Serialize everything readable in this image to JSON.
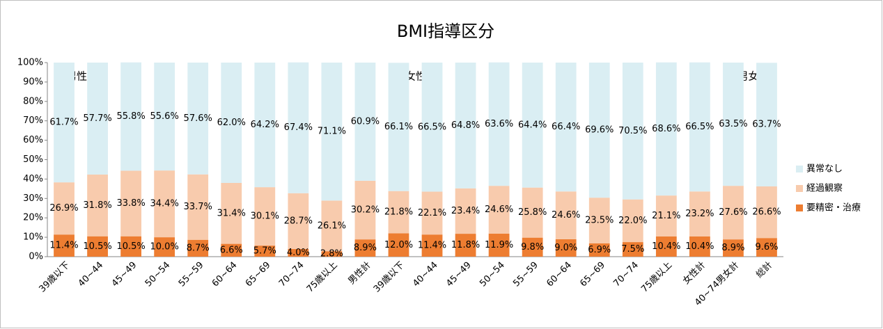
{
  "chart_data": {
    "type": "stacked_bar",
    "title": "BMI指導区分",
    "categories": [
      "39歳以下",
      "40~44",
      "45~49",
      "50~54",
      "55~59",
      "60~64",
      "65~69",
      "70~74",
      "75歳以上",
      "男性計",
      "39歳以下",
      "40~44",
      "45~49",
      "50~54",
      "55~59",
      "60~64",
      "65~69",
      "70~74",
      "75歳以上",
      "女性計",
      "40~74男女計",
      "総計"
    ],
    "series": [
      {
        "name": "要精密・治療",
        "color": "#ed7d31",
        "values": [
          11.4,
          10.5,
          10.5,
          10.0,
          8.7,
          6.6,
          5.7,
          4.0,
          2.8,
          8.9,
          12.0,
          11.4,
          11.8,
          11.9,
          9.8,
          9.0,
          6.9,
          7.5,
          10.4,
          10.4,
          8.9,
          9.6
        ],
        "value_labels": [
          "11.4%",
          "10.5%",
          "10.5%",
          "10.0%",
          "8.7%",
          "6.6%",
          "5.7%",
          "4.0%",
          "2.8%",
          "8.9%",
          "12.0%",
          "11.4%",
          "11.8%",
          "11.9%",
          "9.8%",
          "9.0%",
          "6.9%",
          "7.5%",
          "10.4%",
          "10.4%",
          "8.9%",
          "9.6%"
        ]
      },
      {
        "name": "経過観察",
        "color": "#f8cbad",
        "values": [
          26.9,
          31.8,
          33.8,
          34.4,
          33.7,
          31.4,
          30.1,
          28.7,
          26.1,
          30.2,
          21.8,
          22.1,
          23.4,
          24.6,
          25.8,
          24.6,
          23.5,
          22.0,
          21.1,
          23.2,
          27.6,
          26.6
        ],
        "value_labels": [
          "26.9%",
          "31.8%",
          "33.8%",
          "34.4%",
          "33.7%",
          "31.4%",
          "30.1%",
          "28.7%",
          "26.1%",
          "30.2%",
          "21.8%",
          "22.1%",
          "23.4%",
          "24.6%",
          "25.8%",
          "24.6%",
          "23.5%",
          "22.0%",
          "21.1%",
          "23.2%",
          "27.6%",
          "26.6%"
        ]
      },
      {
        "name": "異常なし",
        "color": "#daeef3",
        "values": [
          61.7,
          57.7,
          55.8,
          55.6,
          57.6,
          62.0,
          64.2,
          67.4,
          71.1,
          60.9,
          66.1,
          66.5,
          64.8,
          63.6,
          64.4,
          66.4,
          69.6,
          70.5,
          68.6,
          66.5,
          63.5,
          63.7
        ],
        "value_labels": [
          "61.7%",
          "57.7%",
          "55.8%",
          "55.6%",
          "57.6%",
          "62.0%",
          "64.2%",
          "67.4%",
          "71.1%",
          "60.9%",
          "66.1%",
          "66.5%",
          "64.8%",
          "63.6%",
          "64.4%",
          "66.4%",
          "69.6%",
          "70.5%",
          "68.6%",
          "66.5%",
          "63.5%",
          "63.7%"
        ]
      }
    ],
    "ylim": [
      0,
      100
    ],
    "yticks": [
      {
        "value": 0,
        "label": "0%"
      },
      {
        "value": 10,
        "label": "10%"
      },
      {
        "value": 20,
        "label": "20%"
      },
      {
        "value": 30,
        "label": "30%"
      },
      {
        "value": 40,
        "label": "40%"
      },
      {
        "value": 50,
        "label": "50%"
      },
      {
        "value": 60,
        "label": "60%"
      },
      {
        "value": 70,
        "label": "70%"
      },
      {
        "value": 80,
        "label": "80%"
      },
      {
        "value": 90,
        "label": "90%"
      },
      {
        "value": 100,
        "label": "100%"
      }
    ],
    "annotations": [
      "男性",
      "女性",
      "男女計"
    ],
    "legend": "right"
  }
}
